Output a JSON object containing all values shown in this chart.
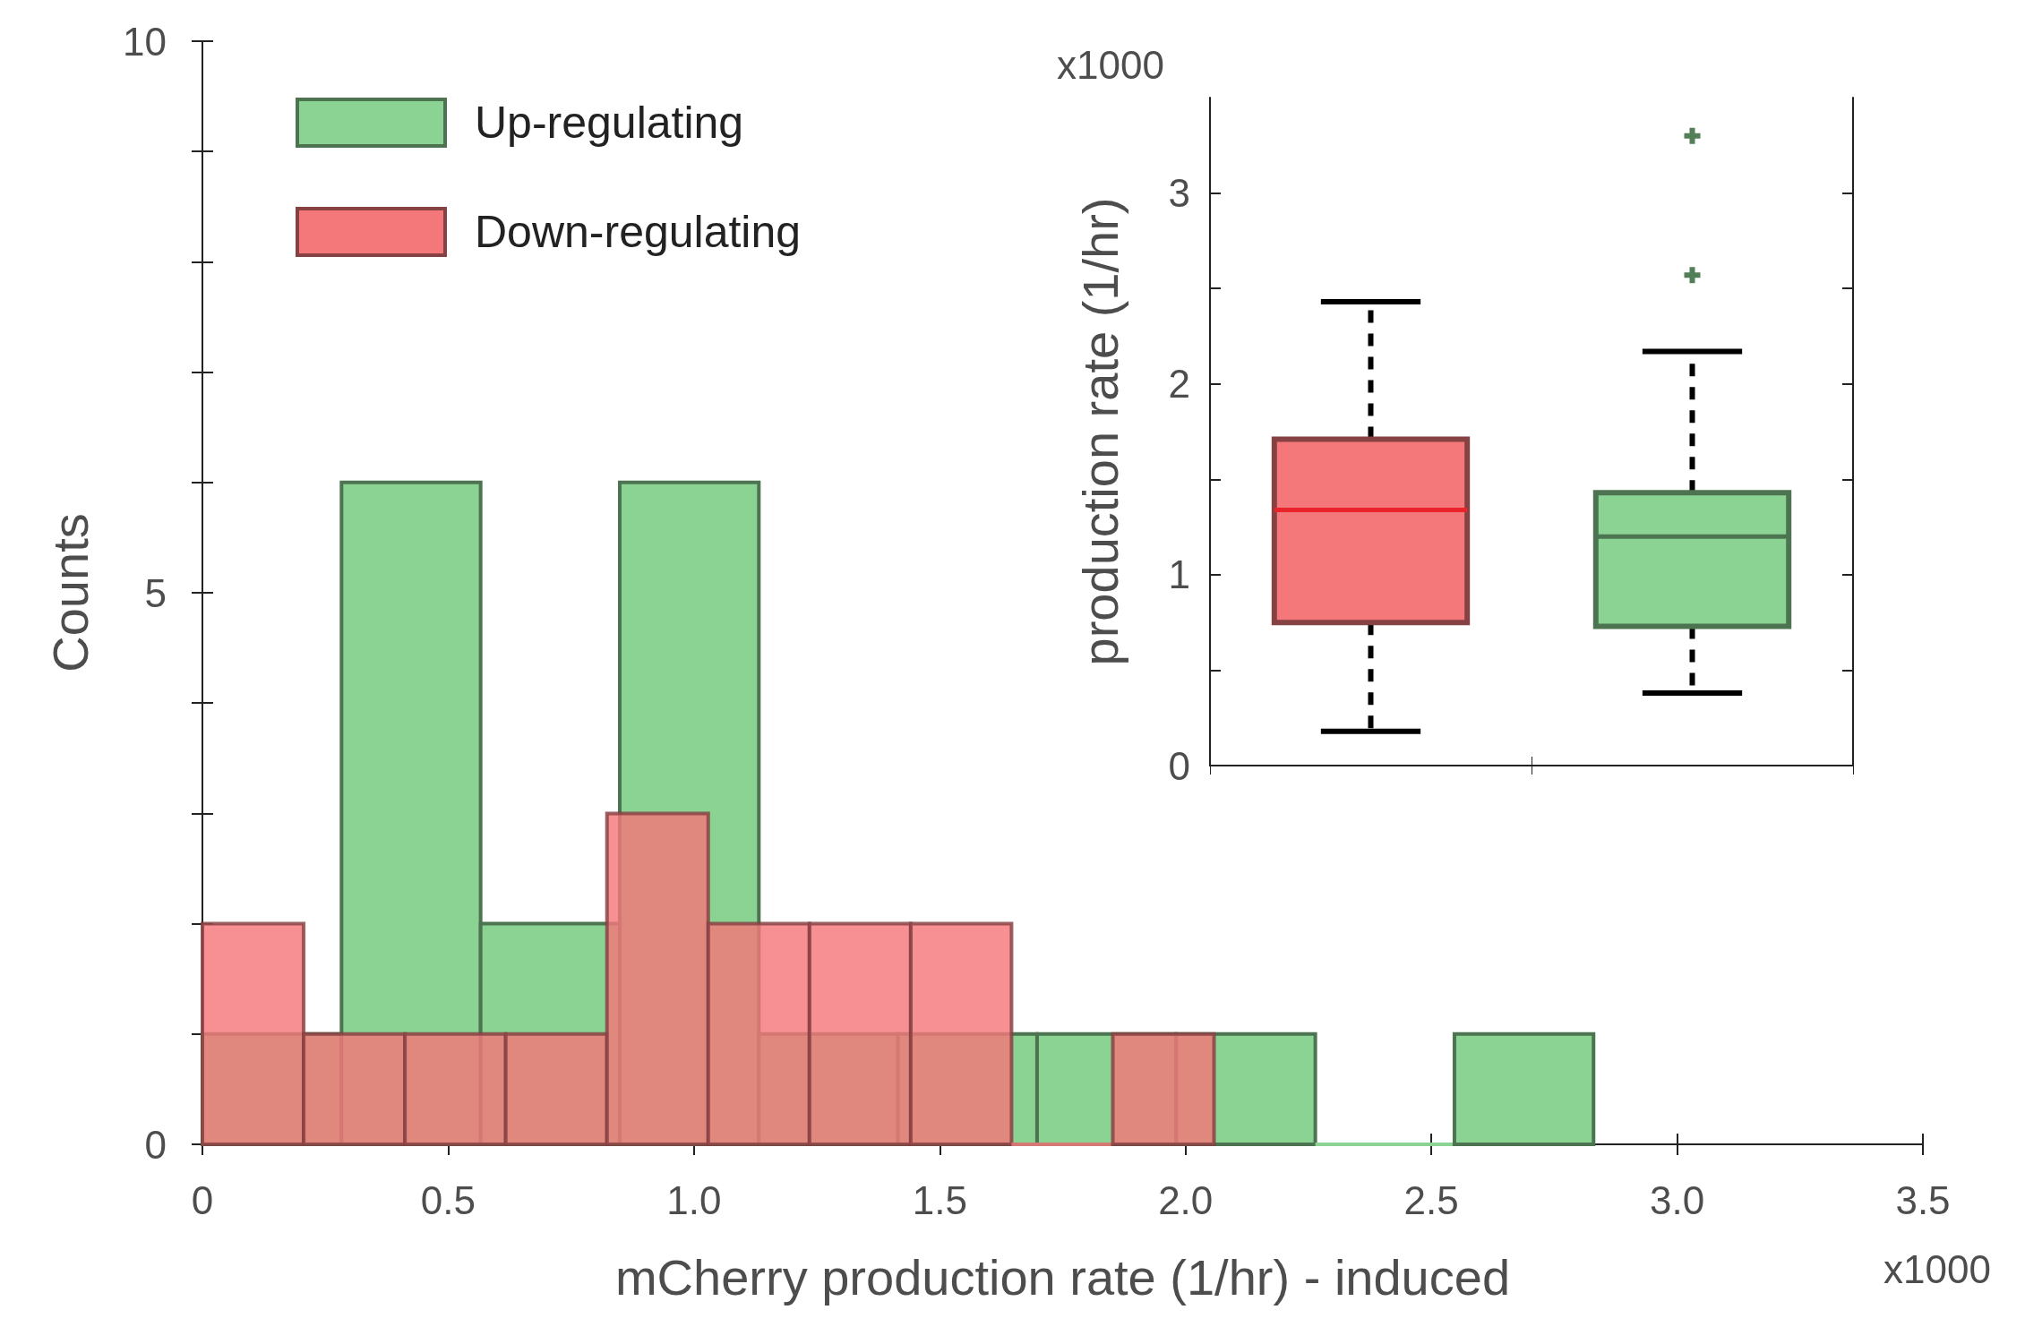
{
  "chart_data": [
    {
      "type": "histogram",
      "xlabel": "mCherry production rate (1/hr) - induced",
      "ylabel": "Counts",
      "legend": "top left",
      "bins": [
        0,
        0.283,
        0.566,
        0.849,
        1.132,
        1.415,
        1.698,
        1.981,
        2.264,
        2.547,
        2.83
      ],
      "series": [
        {
          "name": "Up-regulating",
          "color": "#8bd393",
          "values": [
            1,
            6,
            2,
            6,
            1,
            1,
            1,
            1,
            0,
            1
          ]
        },
        {
          "name": "Down-regulating",
          "color": "#f4777a",
          "bins": [
            0,
            0.206,
            0.412,
            0.617,
            0.823,
            1.029,
            1.235,
            1.441,
            1.646,
            1.852,
            2.058
          ],
          "values": [
            2,
            1,
            1,
            1,
            3,
            2,
            2,
            2,
            0,
            1
          ]
        }
      ],
      "xlim": [
        0,
        3.5
      ],
      "xticks": [
        {
          "value": 0,
          "label": "0"
        },
        {
          "value": 0.5,
          "label": "0.5"
        },
        {
          "value": 1,
          "label": "1.0"
        },
        {
          "value": 1.5,
          "label": "1.5"
        },
        {
          "value": 2,
          "label": "2.0"
        },
        {
          "value": 2.5,
          "label": "2.5"
        },
        {
          "value": 3,
          "label": "3.0"
        },
        {
          "value": 3.5,
          "label": "3.5"
        }
      ],
      "ylim": [
        0,
        10
      ],
      "yticks": [
        {
          "value": 0,
          "label": "0"
        },
        {
          "value": 1,
          "label": null
        },
        {
          "value": 2,
          "label": null
        },
        {
          "value": 3,
          "label": null
        },
        {
          "value": 4,
          "label": null
        },
        {
          "value": 5,
          "label": "5"
        },
        {
          "value": 6,
          "label": null
        },
        {
          "value": 7,
          "label": null
        },
        {
          "value": 8,
          "label": null
        },
        {
          "value": 9,
          "label": null
        },
        {
          "value": 10,
          "label": "10"
        }
      ],
      "annotations": [
        "x1000"
      ],
      "grid": false
    },
    {
      "type": "box",
      "ylabel": "production rate (1/hr)",
      "categories": [
        null,
        null
      ],
      "colors": [
        "#f4777a",
        "#8bd393"
      ],
      "boxes": [
        {
          "low": 0.18,
          "q1": 0.75,
          "median": 1.34,
          "q3": 1.71,
          "high": 2.43
        },
        {
          "low": 0.38,
          "q1": 0.73,
          "median": 1.2,
          "q3": 1.43,
          "high": 2.17,
          "outliers": [
            2.57,
            3.3
          ]
        }
      ],
      "ylim": [
        0,
        3.5
      ],
      "yticks": [
        {
          "value": 0,
          "label": "0"
        },
        {
          "value": 0.5,
          "label": null
        },
        {
          "value": 1,
          "label": "1"
        },
        {
          "value": 1.5,
          "label": null
        },
        {
          "value": 2,
          "label": "2"
        },
        {
          "value": 2.5,
          "label": null
        },
        {
          "value": 3,
          "label": "3"
        }
      ],
      "annotations": [
        "x1000"
      ],
      "marker": "cross",
      "line_style": "dashed",
      "grid": false
    }
  ]
}
